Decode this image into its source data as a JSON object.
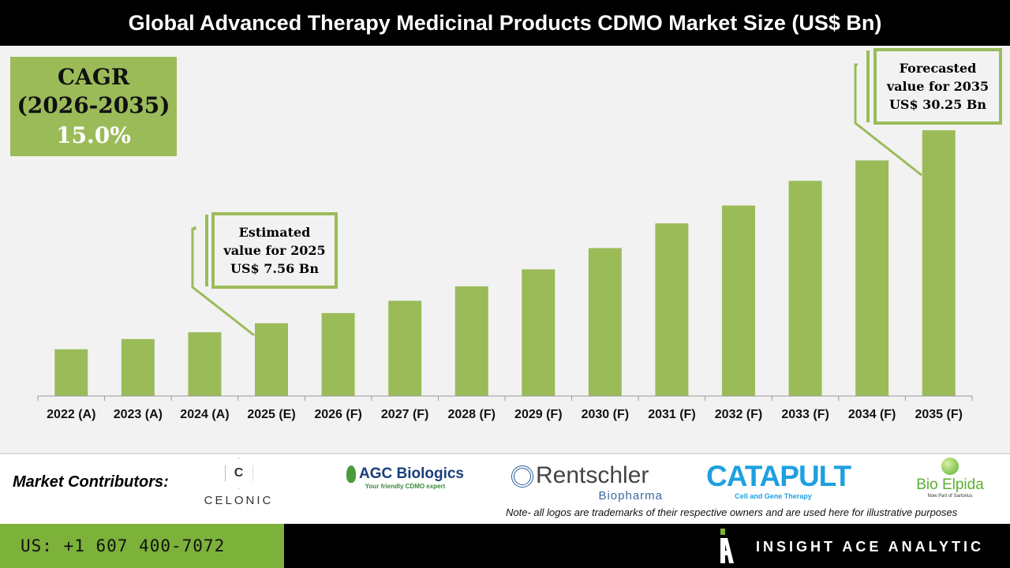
{
  "chart_data": {
    "type": "bar",
    "title": "Global Advanced Therapy Medicinal Products CDMO Market Size (US$ Bn)",
    "categories": [
      "2022 (A)",
      "2023 (A)",
      "2024 (A)",
      "2025 (E)",
      "2026 (F)",
      "2027 (F)",
      "2028 (F)",
      "2029 (F)",
      "2030 (F)",
      "2031 (F)",
      "2032 (F)",
      "2033 (F)",
      "2034 (F)",
      "2035 (F)"
    ],
    "values": [
      4.5,
      5.7,
      6.5,
      7.56,
      8.75,
      10.2,
      11.9,
      13.9,
      16.4,
      19.3,
      21.4,
      24.3,
      26.7,
      30.25
    ],
    "ylim": [
      -1,
      40
    ],
    "grid": false,
    "bar_color": "#9bbb59",
    "annotations": [
      {
        "lines": [
          "Estimated",
          "value for 2025",
          "US$ 7.56 Bn"
        ]
      },
      {
        "lines": [
          "Forecasted",
          "value for 2035",
          "US$ 30.25 Bn"
        ]
      }
    ]
  },
  "cagr": {
    "label": "CAGR",
    "period": "(2026-2035)",
    "value": "15.0%"
  },
  "contributors": {
    "label": "Market Contributors:",
    "logos": [
      {
        "name": "CELONIC",
        "mark": "C"
      },
      {
        "name": "AGC Biologics",
        "tagline": "Your friendly CDMO expert"
      },
      {
        "name": "Rentschler",
        "sub": "Biopharma"
      },
      {
        "name": "CATAPULT",
        "sub": "Cell and Gene Therapy"
      },
      {
        "name": "Bio Elpida",
        "sub": "Now Part of Sartorius"
      }
    ],
    "note": "Note- all logos are trademarks of their respective owners and are used here for illustrative purposes"
  },
  "footer": {
    "phone": "US: +1 607 400-7072",
    "brand": "INSIGHT ACE ANALYTIC"
  }
}
